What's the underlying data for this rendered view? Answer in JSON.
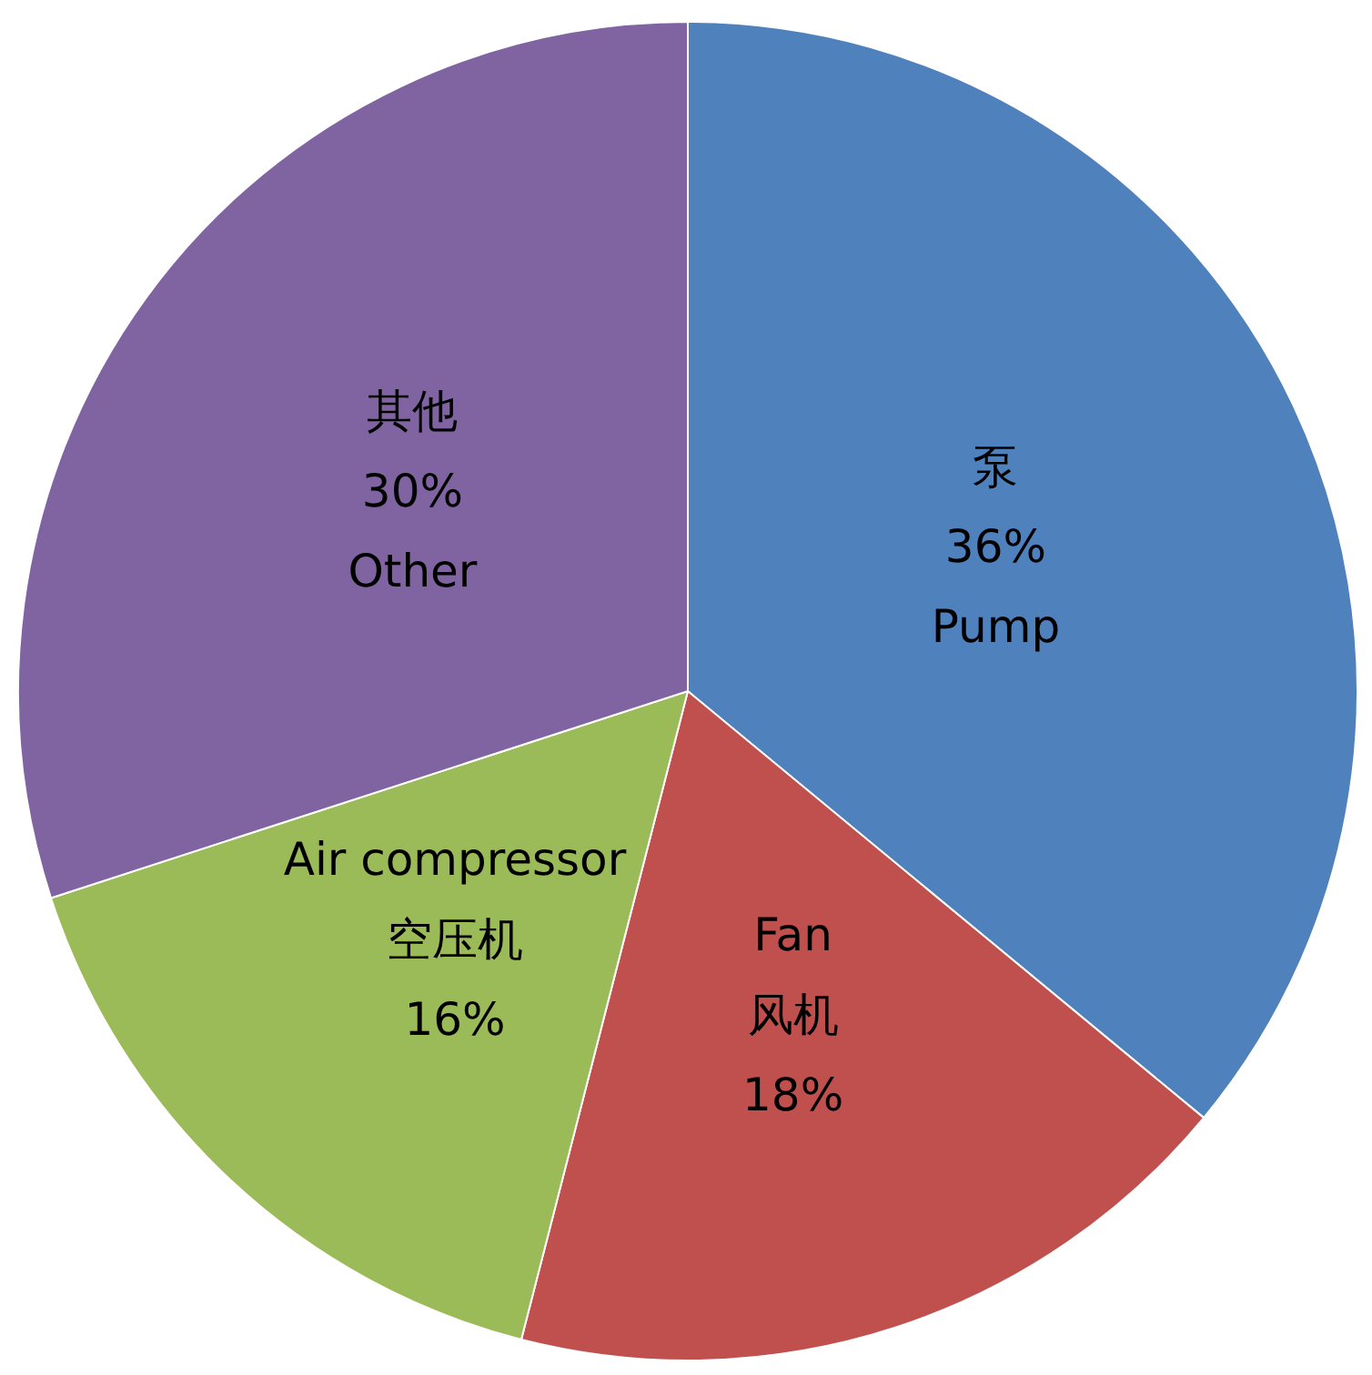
{
  "chart_data": {
    "type": "pie",
    "categories": [
      "泵\n36%\nPump",
      "Fan\n风机\n18%",
      "Air compressor\n空压机\n16%",
      "其他\n30%\nOther"
    ],
    "values": [
      36,
      18,
      16,
      30
    ],
    "colors": [
      "#4f81bd",
      "#c0504d",
      "#9bbb59",
      "#8064a2"
    ]
  }
}
